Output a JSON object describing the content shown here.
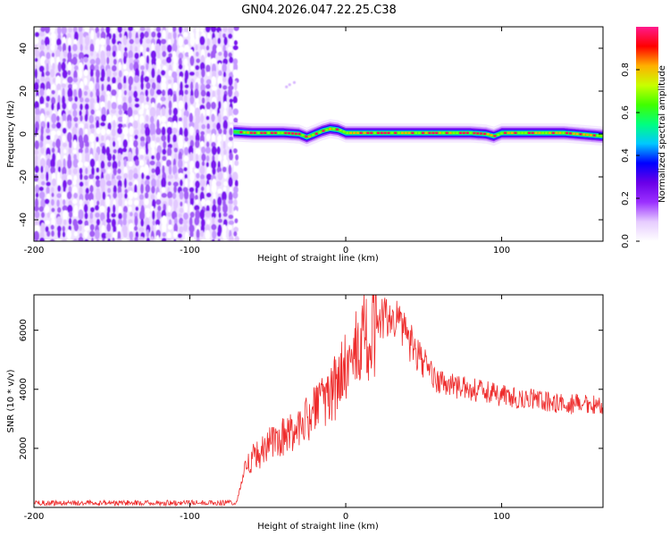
{
  "chart_data": [
    {
      "type": "heatmap",
      "title": "GN04.2026.047.22.25.C38",
      "xlabel": "Height of straight line (km)",
      "ylabel": "Frequency (Hz)",
      "xlim": [
        -200,
        165
      ],
      "ylim": [
        -50,
        50
      ],
      "xticks": [
        -200,
        -100,
        0,
        100
      ],
      "xtick_labels": [
        "-200",
        "-100",
        "0",
        "100"
      ],
      "yticks": [
        -40,
        -20,
        0,
        20,
        40
      ],
      "ytick_labels": [
        "-40",
        "-20",
        "0",
        "20",
        "40"
      ],
      "noise_region_x": [
        -200,
        -72
      ],
      "signal_start_x": -72,
      "signal_ridge": {
        "x": [
          -72,
          -60,
          -50,
          -40,
          -30,
          -25,
          -20,
          -15,
          -10,
          -5,
          0,
          10,
          25,
          40,
          60,
          80,
          90,
          95,
          100,
          120,
          140,
          165
        ],
        "freq": [
          1,
          0.5,
          0.5,
          0.5,
          0,
          -1.5,
          0,
          1.5,
          2.5,
          2,
          0.5,
          0.5,
          0.5,
          0.5,
          0.5,
          0.5,
          0,
          -1,
          0.5,
          0.5,
          0.5,
          -1
        ]
      },
      "colorbar": {
        "label": "Normalized spectral amplitude",
        "range": [
          0,
          1
        ],
        "ticks": [
          0.0,
          0.2,
          0.4,
          0.6,
          0.8
        ],
        "tick_labels": [
          "0.0",
          "0.2",
          "0.4",
          "0.6",
          "0.8"
        ],
        "colors": [
          "#ffffff",
          "#e6ccff",
          "#9b30ff",
          "#6a00e8",
          "#0000ff",
          "#00c8ff",
          "#00ff80",
          "#40ff00",
          "#c8ff00",
          "#ffb000",
          "#ff0000",
          "#ff1a8c"
        ]
      }
    },
    {
      "type": "line",
      "xlabel": "Height of straight line (km)",
      "ylabel": "SNR (10 * v/v)",
      "xlim": [
        -200,
        165
      ],
      "ylim": [
        0,
        7200
      ],
      "xticks": [
        -200,
        -100,
        0,
        100
      ],
      "xtick_labels": [
        "-200",
        "-100",
        "0",
        "100"
      ],
      "yticks": [
        2000,
        4000,
        6000
      ],
      "ytick_labels": [
        "2000",
        "4000",
        "6000"
      ],
      "color": "#ee2c2c",
      "series": [
        {
          "name": "SNR",
          "x": [
            -200,
            -180,
            -160,
            -140,
            -120,
            -100,
            -80,
            -70,
            -65,
            -60,
            -55,
            -50,
            -45,
            -40,
            -35,
            -30,
            -25,
            -20,
            -15,
            -10,
            -5,
            0,
            5,
            10,
            15,
            20,
            25,
            30,
            35,
            40,
            45,
            50,
            55,
            60,
            70,
            80,
            90,
            100,
            110,
            120,
            130,
            140,
            150,
            165
          ],
          "y": [
            150,
            150,
            150,
            150,
            150,
            160,
            160,
            170,
            1200,
            1700,
            1800,
            2100,
            2200,
            2400,
            2600,
            2800,
            3000,
            3200,
            3500,
            3800,
            4200,
            4700,
            5100,
            5500,
            5900,
            6200,
            6400,
            6500,
            6100,
            5700,
            5300,
            4900,
            4500,
            4200,
            4100,
            4000,
            3900,
            3800,
            3700,
            3650,
            3550,
            3500,
            3500,
            3500
          ]
        }
      ]
    }
  ]
}
